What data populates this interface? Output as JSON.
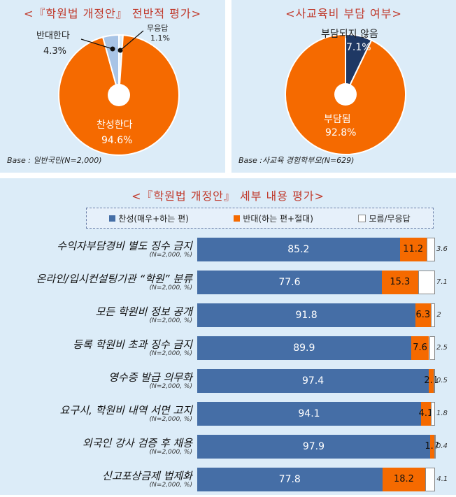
{
  "chart_data": [
    {
      "type": "pie",
      "title": "<『학원법 개정안』 전반적 평가>",
      "slices": [
        {
          "label": "찬성한다",
          "value": 94.6,
          "value_text": "94.6%",
          "color": "#f56a00"
        },
        {
          "label": "반대한다",
          "value": 4.3,
          "value_text": "4.3%",
          "color": "#a8c4e6"
        },
        {
          "label": "무응답",
          "value": 1.1,
          "value_text": "1.1%",
          "color": "#dcecf8"
        }
      ],
      "base_note": "Base : 일반국민(N=2,000)"
    },
    {
      "type": "pie",
      "title": "<사교육비 부담 여부>",
      "slices": [
        {
          "label": "부담되지 않음",
          "value": 7.1,
          "value_text": "7.1%",
          "color": "#1f3864"
        },
        {
          "label": "부담됨",
          "value": 92.8,
          "value_text": "92.8%",
          "color": "#f56a00"
        }
      ],
      "base_note": "Base :사교육 경험학부모(N=629)"
    },
    {
      "type": "bar",
      "orientation": "horizontal",
      "stacked": true,
      "title": "<『학원법 개정안』 세부 내용 평가>",
      "legend": [
        "찬성(매우+하는 편)",
        "반대(하는 편+절대)",
        "모름/무응답"
      ],
      "legend_colors": [
        "#456ea6",
        "#f56a00",
        "#ffffff"
      ],
      "categories": [
        "수익자부담경비 별도 징수 금지",
        "온라인/입시컨설팅기관 “학원” 분류",
        "모든 학원비 정보 공개",
        "등록 학원비 초과 징수 금지",
        "영수증 발급 의무화",
        "요구시, 학원비 내역 서면 고지",
        "외국인 강사 검증 후 채용",
        "신고포상금제 법제화"
      ],
      "note": "(N=2,000, %)",
      "series": [
        {
          "name": "찬성(매우+하는 편)",
          "values": [
            85.2,
            77.6,
            91.8,
            89.9,
            97.4,
            94.1,
            97.9,
            77.8
          ]
        },
        {
          "name": "반대(하는 편+절대)",
          "values": [
            11.2,
            15.3,
            6.3,
            7.6,
            2.1,
            4.1,
            1.7,
            18.2
          ]
        },
        {
          "name": "모름/무응답",
          "values": [
            3.6,
            7.1,
            2.0,
            2.5,
            0.5,
            1.8,
            0.4,
            4.1
          ]
        }
      ],
      "xlim": [
        0,
        100
      ]
    }
  ]
}
